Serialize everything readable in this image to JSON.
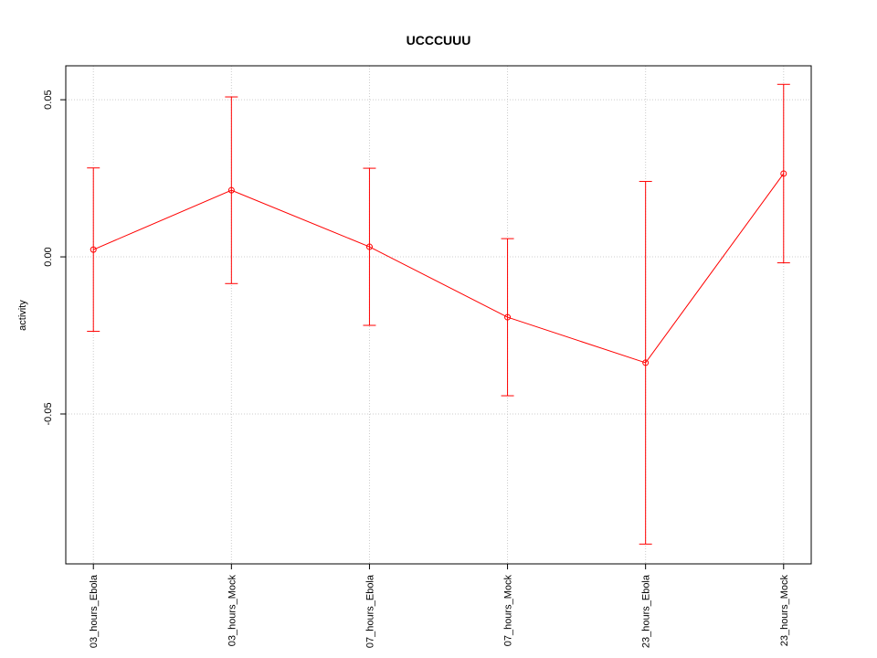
{
  "chart_data": {
    "type": "line",
    "title": "UCCCUUU",
    "y_label": "activity",
    "categories": [
      "03_hours_Ebola",
      "03_hours_Mock",
      "07_hours_Ebola",
      "07_hours_Mock",
      "23_hours_Ebola",
      "23_hours_Mock"
    ],
    "series": [
      {
        "color": "#ff0000",
        "values": [
          0.0023,
          0.0212,
          0.0032,
          -0.0192,
          -0.0337,
          0.0265
        ],
        "errors": [
          0.026,
          0.0297,
          0.025,
          0.025,
          0.0577,
          0.0284
        ]
      }
    ],
    "ylim": [
      -0.0977,
      0.0608
    ],
    "yticks": [
      -0.05,
      {
        "value": 0,
        "label": "0.00"
      },
      0.05
    ],
    "grid": true
  }
}
